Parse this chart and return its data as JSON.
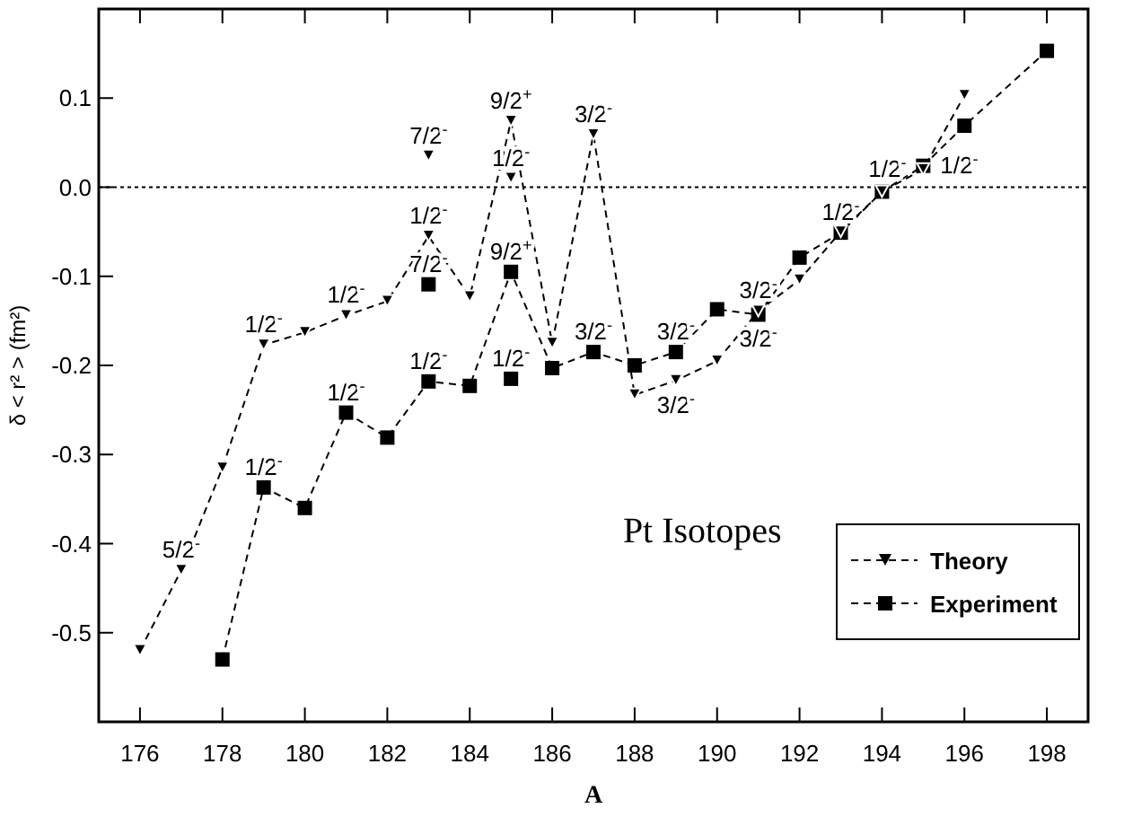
{
  "chart_data": {
    "type": "line",
    "xlabel": "A",
    "ylabel": "δ < r² > (fm²)",
    "xlim": [
      175,
      199
    ],
    "xticks": [
      176,
      178,
      180,
      182,
      184,
      186,
      188,
      190,
      192,
      194,
      196,
      198
    ],
    "ylim": [
      -0.6,
      0.2
    ],
    "yticks": [
      -0.5,
      -0.4,
      -0.3,
      -0.2,
      -0.1,
      {
        "value": 0,
        "label": "0.0"
      },
      0.1
    ],
    "grid": false,
    "legend": "bottom right",
    "line_style": "dashed",
    "ref_lines": [
      {
        "axis": "y",
        "value": 0,
        "line_style": "dotted",
        "color": "#000000"
      }
    ],
    "series": [
      {
        "name": "Theory",
        "marker": "triangle",
        "color": "#000000",
        "x": [
          176,
          177,
          178,
          179,
          180,
          181,
          182,
          183,
          184,
          185,
          186,
          187,
          188,
          189,
          190,
          191,
          192,
          193,
          194,
          195,
          196
        ],
        "values": [
          -0.52,
          -0.43,
          -0.315,
          -0.177,
          -0.163,
          -0.144,
          -0.128,
          -0.055,
          -0.123,
          0.074,
          -0.175,
          0.059,
          -0.233,
          -0.217,
          -0.195,
          -0.139,
          -0.104,
          -0.05,
          -0.005,
          0.02,
          0.103
        ]
      },
      {
        "name": "Experiment",
        "marker": "square",
        "color": "#000000",
        "x": [
          178,
          179,
          180,
          181,
          182,
          183,
          184,
          185,
          186,
          187,
          188,
          189,
          190,
          191,
          192,
          193,
          194,
          195,
          196,
          198
        ],
        "values": [
          -0.53,
          -0.337,
          -0.36,
          -0.253,
          -0.281,
          -0.218,
          -0.223,
          -0.095,
          -0.203,
          -0.185,
          -0.2,
          -0.185,
          -0.137,
          -0.143,
          -0.079,
          -0.051,
          -0.005,
          0.024,
          0.069,
          0.153
        ]
      },
      {
        "type": "scatter",
        "marker": "triangle",
        "color": "#000000",
        "x": [
          183,
          185
        ],
        "values": [
          0.035,
          0.01
        ]
      },
      {
        "type": "scatter",
        "marker": "square",
        "color": "#000000",
        "x": [
          183,
          185
        ],
        "values": [
          -0.109,
          -0.215
        ]
      }
    ],
    "annotations": [
      "Pt Isotopes",
      {
        "text": "5/2$^{-}$",
        "x": 177,
        "y": -0.43
      },
      {
        "text": "1/2$^{-}$",
        "x": 179,
        "y": -0.177
      },
      {
        "text": "1/2$^{-}$",
        "x": 181,
        "y": -0.144
      },
      {
        "text": "1/2$^{-}$",
        "x": 183,
        "y": -0.055
      },
      {
        "text": "7/2$^{-}$",
        "x": 183,
        "y": 0.035
      },
      {
        "text": "9/2$^{+}$",
        "x": 185,
        "y": 0.074
      },
      {
        "text": "1/2$^{-}$",
        "x": 185,
        "y": 0.01
      },
      {
        "text": "3/2$^{-}$",
        "x": 187,
        "y": 0.059
      },
      {
        "text": "3/2$^{-}$",
        "x": 189,
        "y": -0.217
      },
      {
        "text": "3/2$^{-}$",
        "x": 191,
        "y": -0.139
      },
      {
        "text": "1/2$^{-}$",
        "x": 195,
        "y": 0.02
      },
      {
        "text": "1/2$^{-}$",
        "x": 179,
        "y": -0.337
      },
      {
        "text": "1/2$^{-}$",
        "x": 181,
        "y": -0.253
      },
      {
        "text": "1/2$^{-}$",
        "x": 183,
        "y": -0.218
      },
      {
        "text": "7/2$^{-}$",
        "x": 183,
        "y": -0.109
      },
      {
        "text": "9/2$^{+}$",
        "x": 185,
        "y": -0.095
      },
      {
        "text": "1/2$^{-}$",
        "x": 185,
        "y": -0.215
      },
      {
        "text": "3/2$^{-}$",
        "x": 187,
        "y": -0.185
      },
      {
        "text": "3/2$^{-}$",
        "x": 189,
        "y": -0.185
      },
      {
        "text": "3/2$^{-}$",
        "x": 191,
        "y": -0.143
      },
      {
        "text": "1/2$^{-}$",
        "x": 193,
        "y": -0.051
      },
      {
        "text": "1/2$^{-}$",
        "x": 195,
        "y": 0.024
      }
    ]
  }
}
